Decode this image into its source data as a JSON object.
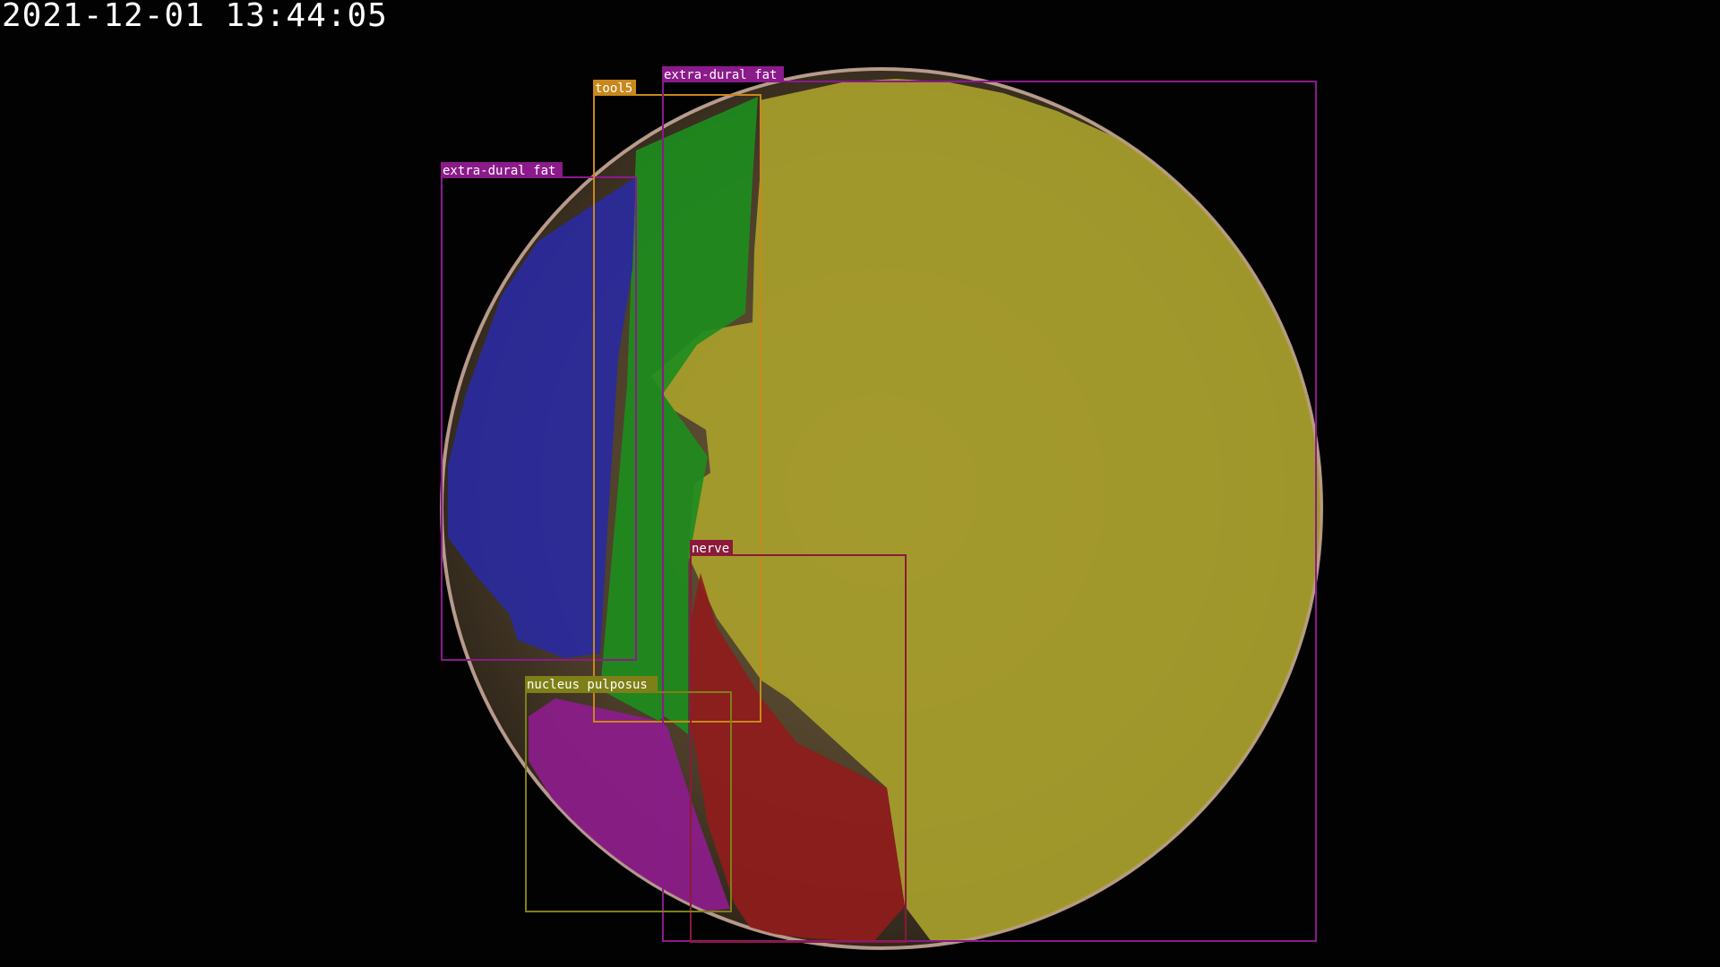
{
  "timestamp": "2021-12-01 13:44:05",
  "annotations": [
    {
      "id": "extra-dural-fat-left",
      "label": "extra-dural fat",
      "color": "#8b1a8b"
    },
    {
      "id": "tool5",
      "label": "tool5",
      "color": "#c8881a"
    },
    {
      "id": "extra-dural-fat-main",
      "label": "extra-dural fat",
      "color": "#8b1a8b"
    },
    {
      "id": "nerve",
      "label": "nerve",
      "color": "#8b1a3a"
    },
    {
      "id": "nucleus-pulposus",
      "label": "nucleus pulposus",
      "color": "#7f7f18"
    }
  ],
  "colors": {
    "extra_dural_fat_region": "#a59f2e",
    "nerve_region": "#8f1f1f",
    "tool5_region": "#1e8a1e",
    "left_fat_region": "#2e2e9c",
    "nucleus_pulposus_region": "#8c1f8c"
  }
}
